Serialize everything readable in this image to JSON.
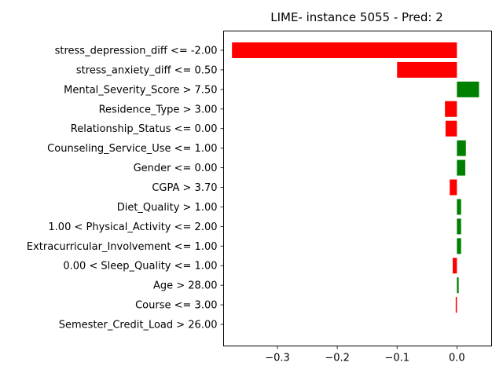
{
  "chart_data": {
    "type": "bar",
    "orientation": "horizontal",
    "title": "LIME- instance 5055 - Pred: 2",
    "xlabel": "",
    "ylabel": "",
    "xlim": [
      -0.39,
      0.058
    ],
    "xticks": [
      -0.3,
      -0.2,
      -0.1,
      0.0
    ],
    "xtick_labels": [
      "−0.3",
      "−0.2",
      "−0.1",
      "0.0"
    ],
    "grid": false,
    "positive_color": "#008000",
    "negative_color": "#ff0000",
    "categories": [
      "stress_depression_diff <= -2.00",
      "stress_anxiety_diff <= 0.50",
      "Mental_Severity_Score > 7.50",
      "Residence_Type > 3.00",
      "Relationship_Status <= 0.00",
      "Counseling_Service_Use <= 1.00",
      "Gender <= 0.00",
      "CGPA > 3.70",
      "Diet_Quality > 1.00",
      "1.00 < Physical_Activity <= 2.00",
      "Extracurricular_Involvement <= 1.00",
      "0.00 < Sleep_Quality <= 1.00",
      "Age > 28.00",
      "Course <= 3.00",
      "Semester_Credit_Load > 26.00"
    ],
    "values": [
      -0.376,
      -0.1,
      0.037,
      -0.02,
      -0.019,
      0.015,
      0.014,
      -0.012,
      0.007,
      0.007,
      0.007,
      -0.007,
      0.003,
      -0.002,
      0.0
    ]
  }
}
